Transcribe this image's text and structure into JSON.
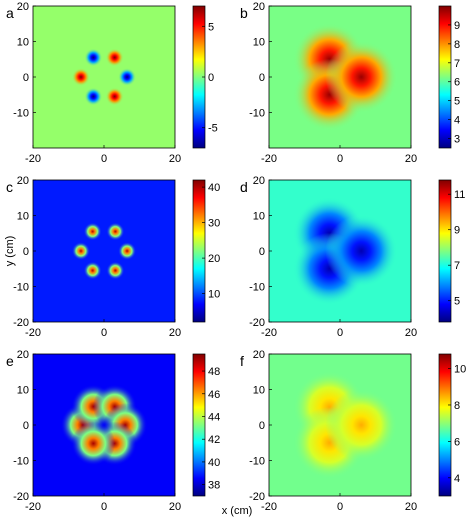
{
  "figure": {
    "xlabel": "x (cm)",
    "ylabel": "y (cm)"
  },
  "chart_data": [
    {
      "type": "heatmap",
      "panel": "a",
      "xticks": [
        -20,
        0,
        20
      ],
      "yticks": [
        -10,
        0,
        10,
        20
      ],
      "xlim": [
        -20,
        20
      ],
      "ylim": [
        -20,
        20
      ],
      "colorbar": {
        "ticks": [
          -5,
          0,
          5
        ],
        "range": [
          -7,
          7
        ]
      },
      "background_value": 0.3,
      "sources": [
        {
          "x": -6.5,
          "y": 0,
          "value": 7
        },
        {
          "x": 3,
          "y": 5.5,
          "value": 7
        },
        {
          "x": 3,
          "y": -5.5,
          "value": 7
        },
        {
          "x": 6.5,
          "y": 0,
          "value": -7
        },
        {
          "x": -3,
          "y": 5.5,
          "value": -7
        },
        {
          "x": -3,
          "y": -5.5,
          "value": -7
        }
      ]
    },
    {
      "type": "heatmap",
      "panel": "b",
      "xticks": [
        -20,
        0,
        20
      ],
      "yticks": [
        -10,
        0,
        10,
        20
      ],
      "xlim": [
        -20,
        20
      ],
      "ylim": [
        -20,
        20
      ],
      "colorbar": {
        "ticks": [
          3,
          4,
          5,
          6,
          7,
          8,
          9
        ],
        "range": [
          2.5,
          10
        ]
      },
      "background_value": 6.2,
      "sources": [
        {
          "x": -3,
          "y": 5,
          "value": 9.8
        },
        {
          "x": -3,
          "y": -5,
          "value": 9.8
        },
        {
          "x": 6,
          "y": 0,
          "value": 9.8
        }
      ]
    },
    {
      "type": "heatmap",
      "panel": "c",
      "ylabel_shown": true,
      "xticks": [
        -20,
        0,
        20
      ],
      "yticks": [
        -20,
        -10,
        0,
        10,
        20
      ],
      "xlim": [
        -20,
        20
      ],
      "ylim": [
        -20,
        20
      ],
      "colorbar": {
        "ticks": [
          10,
          20,
          30,
          40
        ],
        "range": [
          2,
          42
        ]
      },
      "background_value": 8,
      "sources": [
        {
          "x": -6.5,
          "y": 0,
          "value": 40
        },
        {
          "x": -3.2,
          "y": 5.5,
          "value": 40
        },
        {
          "x": 3.2,
          "y": 5.5,
          "value": 40
        },
        {
          "x": 6.5,
          "y": 0,
          "value": 40
        },
        {
          "x": 3.2,
          "y": -5.5,
          "value": 40
        },
        {
          "x": -3.2,
          "y": -5.5,
          "value": 40
        }
      ]
    },
    {
      "type": "heatmap",
      "panel": "d",
      "xticks": [
        -20,
        0,
        20
      ],
      "yticks": [
        -20,
        -10,
        0,
        10,
        20
      ],
      "xlim": [
        -20,
        20
      ],
      "ylim": [
        -20,
        20
      ],
      "colorbar": {
        "ticks": [
          5,
          7,
          9,
          11
        ],
        "range": [
          3.8,
          11.8
        ]
      },
      "background_value": 7.2,
      "sources": [
        {
          "x": -3,
          "y": 5,
          "value": 4.2
        },
        {
          "x": -3,
          "y": -5,
          "value": 4.2
        },
        {
          "x": 6,
          "y": 0,
          "value": 4.2
        }
      ]
    },
    {
      "type": "heatmap",
      "panel": "e",
      "xticks": [
        -20,
        0,
        20
      ],
      "yticks": [
        -20,
        -10,
        0,
        10,
        20
      ],
      "xlim": [
        -20,
        20
      ],
      "ylim": [
        -20,
        20
      ],
      "colorbar": {
        "ticks": [
          38,
          40,
          42,
          44,
          46,
          48
        ],
        "range": [
          37,
          49.5
        ]
      },
      "background_value": 38.5,
      "sources": [
        {
          "x": -6,
          "y": 0,
          "value": 49
        },
        {
          "x": -3,
          "y": 5.2,
          "value": 49
        },
        {
          "x": 3,
          "y": 5.2,
          "value": 49
        },
        {
          "x": 6,
          "y": 0,
          "value": 49
        },
        {
          "x": 3,
          "y": -5.2,
          "value": 49
        },
        {
          "x": -3,
          "y": -5.2,
          "value": 49
        }
      ]
    },
    {
      "type": "heatmap",
      "panel": "f",
      "xticks": [
        -20,
        0,
        20
      ],
      "yticks": [
        -20,
        -10,
        0,
        10,
        20
      ],
      "xlim": [
        -20,
        20
      ],
      "ylim": [
        -20,
        20
      ],
      "colorbar": {
        "ticks": [
          4,
          6,
          8,
          10
        ],
        "range": [
          3,
          10.8
        ]
      },
      "background_value": 6.8,
      "sources": [
        {
          "x": -3,
          "y": 5,
          "value": 8.5
        },
        {
          "x": -3,
          "y": -5,
          "value": 8.5
        },
        {
          "x": 6,
          "y": 0,
          "value": 8.5
        }
      ]
    }
  ]
}
